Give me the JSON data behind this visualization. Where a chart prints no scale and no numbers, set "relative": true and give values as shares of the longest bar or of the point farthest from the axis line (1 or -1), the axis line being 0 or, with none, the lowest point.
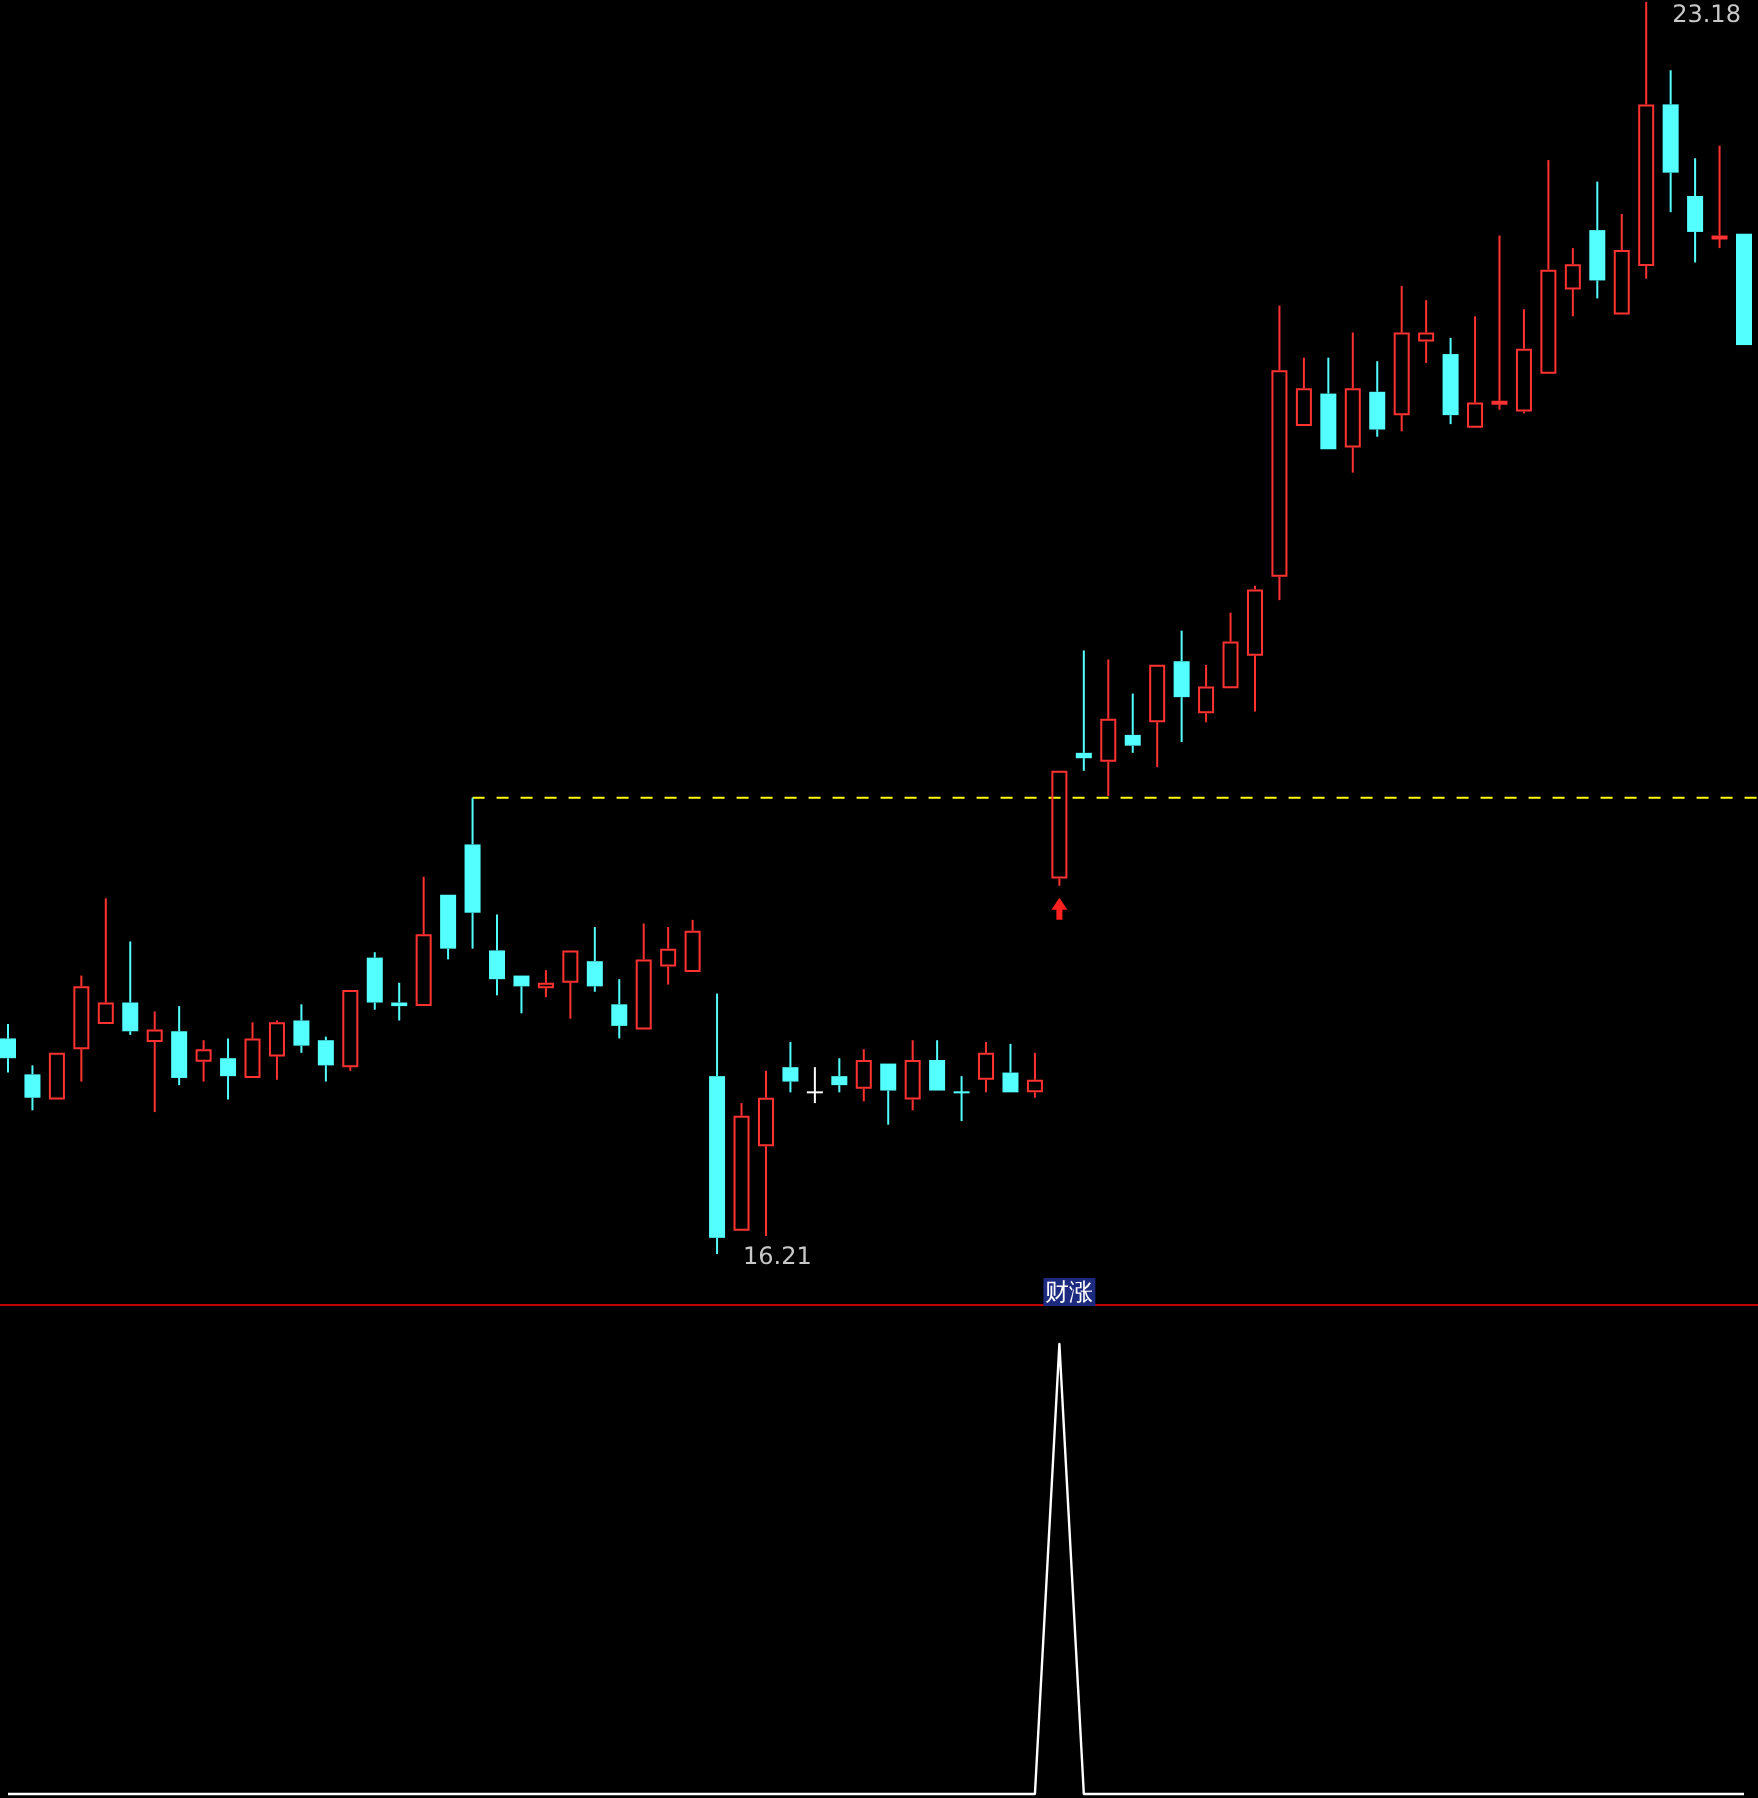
{
  "chart_data": [
    {
      "type": "candlestick",
      "categories": [
        null,
        null,
        null,
        null,
        null,
        null,
        null,
        null,
        null,
        null,
        null,
        null,
        null,
        null,
        null,
        null,
        null,
        null,
        null,
        null,
        null,
        null,
        null,
        null,
        null,
        null,
        null,
        null,
        null,
        null,
        null,
        null,
        null,
        null,
        null,
        null,
        null,
        null,
        null,
        null,
        null,
        null,
        null,
        null,
        null,
        null,
        null,
        null,
        null,
        null,
        null,
        null,
        null,
        null,
        null,
        null,
        null,
        null,
        null,
        null,
        null,
        null,
        null,
        null,
        null,
        null,
        null,
        null,
        null,
        null,
        null,
        null
      ],
      "ohlc": [
        [
          17.41,
          17.49,
          17.22,
          17.3
        ],
        [
          17.21,
          17.26,
          17.01,
          17.08
        ],
        [
          17.07,
          17.33,
          17.07,
          17.33
        ],
        [
          17.35,
          17.76,
          17.17,
          17.7
        ],
        [
          17.49,
          18.19,
          17.49,
          17.61
        ],
        [
          17.61,
          17.95,
          17.43,
          17.45
        ],
        [
          17.39,
          17.56,
          17.0,
          17.46
        ],
        [
          17.45,
          17.59,
          17.15,
          17.19
        ],
        [
          17.28,
          17.4,
          17.17,
          17.35
        ],
        [
          17.3,
          17.41,
          17.07,
          17.2
        ],
        [
          17.19,
          17.5,
          17.19,
          17.41
        ],
        [
          17.31,
          17.51,
          17.18,
          17.5
        ],
        [
          17.51,
          17.6,
          17.33,
          17.37
        ],
        [
          17.4,
          17.42,
          17.17,
          17.26
        ],
        [
          17.25,
          17.68,
          17.23,
          17.68
        ],
        [
          17.86,
          17.89,
          17.57,
          17.61
        ],
        [
          17.61,
          17.72,
          17.51,
          17.59
        ],
        [
          17.59,
          18.31,
          17.59,
          17.99
        ],
        [
          18.21,
          18.21,
          17.85,
          17.91
        ],
        [
          18.49,
          18.75,
          17.91,
          18.11
        ],
        [
          17.9,
          18.1,
          17.65,
          17.74
        ],
        [
          17.76,
          17.76,
          17.55,
          17.7
        ],
        [
          17.69,
          17.79,
          17.64,
          17.72
        ],
        [
          17.72,
          17.9,
          17.52,
          17.9
        ],
        [
          17.84,
          18.03,
          17.67,
          17.7
        ],
        [
          17.6,
          17.74,
          17.41,
          17.48
        ],
        [
          17.46,
          18.05,
          17.46,
          17.85
        ],
        [
          17.81,
          18.03,
          17.71,
          17.91
        ],
        [
          17.78,
          18.07,
          17.78,
          18.01
        ],
        [
          17.2,
          17.66,
          16.21,
          16.3
        ],
        [
          16.34,
          17.05,
          16.34,
          16.98
        ],
        [
          16.81,
          17.23,
          16.31,
          17.08
        ],
        [
          17.25,
          17.39,
          17.11,
          17.17
        ],
        [
          17.11,
          17.25,
          17.05,
          17.11
        ],
        [
          17.2,
          17.3,
          17.11,
          17.15
        ],
        [
          17.13,
          17.35,
          17.06,
          17.29
        ],
        [
          17.27,
          17.27,
          16.93,
          17.12
        ],
        [
          17.07,
          17.4,
          17.01,
          17.29
        ],
        [
          17.29,
          17.4,
          17.12,
          17.12
        ],
        [
          17.11,
          17.2,
          16.95,
          17.11
        ],
        [
          17.18,
          17.39,
          17.11,
          17.33
        ],
        [
          17.22,
          17.38,
          17.11,
          17.11
        ],
        [
          17.11,
          17.33,
          17.08,
          17.18
        ],
        [
          18.3,
          18.9,
          18.26,
          18.9
        ],
        [
          19.0,
          19.57,
          18.9,
          18.97
        ],
        [
          18.95,
          19.52,
          18.76,
          19.19
        ],
        [
          19.1,
          19.33,
          19.0,
          19.04
        ],
        [
          19.17,
          19.49,
          18.92,
          19.49
        ],
        [
          19.51,
          19.68,
          19.06,
          19.31
        ],
        [
          19.22,
          19.49,
          19.17,
          19.37
        ],
        [
          19.36,
          19.78,
          19.36,
          19.62
        ],
        [
          19.54,
          19.93,
          19.23,
          19.91
        ],
        [
          19.98,
          21.49,
          19.85,
          21.13
        ],
        [
          20.82,
          21.2,
          20.82,
          21.03
        ],
        [
          21.0,
          21.2,
          20.69,
          20.69
        ],
        [
          20.7,
          21.34,
          20.56,
          21.03
        ],
        [
          21.01,
          21.18,
          20.76,
          20.8
        ],
        [
          20.88,
          21.6,
          20.79,
          21.34
        ],
        [
          21.29,
          21.52,
          21.17,
          21.34
        ],
        [
          21.22,
          21.31,
          20.83,
          20.88
        ],
        [
          20.81,
          21.43,
          20.81,
          20.95
        ],
        [
          20.94,
          21.88,
          20.91,
          20.96
        ],
        [
          20.9,
          21.47,
          20.89,
          21.25
        ],
        [
          21.11,
          22.3,
          21.11,
          21.69
        ],
        [
          21.58,
          21.81,
          21.43,
          21.72
        ],
        [
          21.91,
          22.18,
          21.53,
          21.63
        ],
        [
          21.44,
          22.0,
          21.44,
          21.8
        ],
        [
          21.71,
          23.18,
          21.64,
          22.61
        ],
        [
          22.61,
          22.8,
          22.01,
          22.23
        ],
        [
          22.1,
          22.31,
          21.73,
          21.9
        ],
        [
          21.86,
          22.38,
          21.81,
          21.88
        ],
        [
          21.89,
          21.89,
          21.27,
          21.27
        ]
      ],
      "colors": [
        "#54ffff",
        "#54ffff",
        "#ff3232",
        "#ff3232",
        "#ff3232",
        "#54ffff",
        "#ff3232",
        "#54ffff",
        "#ff3232",
        "#54ffff",
        "#ff3232",
        "#ff3232",
        "#54ffff",
        "#54ffff",
        "#ff3232",
        "#54ffff",
        "#54ffff",
        "#ff3232",
        "#54ffff",
        "#54ffff",
        "#54ffff",
        "#54ffff",
        "#ff3232",
        "#ff3232",
        "#54ffff",
        "#54ffff",
        "#ff3232",
        "#ff3232",
        "#ff3232",
        "#54ffff",
        "#ff3232",
        "#ff3232",
        "#54ffff",
        "#ffffff",
        "#54ffff",
        "#ff3232",
        "#54ffff",
        "#ff3232",
        "#54ffff",
        "#54ffff",
        "#ff3232",
        "#54ffff",
        "#ff3232",
        "#ff3232",
        "#54ffff",
        "#ff3232",
        "#54ffff",
        "#ff3232",
        "#54ffff",
        "#ff3232",
        "#ff3232",
        "#ff3232",
        "#ff3232",
        "#ff3232",
        "#54ffff",
        "#ff3232",
        "#54ffff",
        "#ff3232",
        "#ff3232",
        "#54ffff",
        "#ff3232",
        "#ff3232",
        "#ff3232",
        "#ff3232",
        "#ff3232",
        "#54ffff",
        "#ff3232",
        "#ff3232",
        "#54ffff",
        "#54ffff",
        "#ff3232",
        "#54ffff"
      ],
      "annotations": [
        "23.18",
        "16.21"
      ],
      "ref_lines": [
        {
          "axis": "y",
          "value": 18.75,
          "color": "#ffff00",
          "line_style": "dashed"
        }
      ]
    },
    {
      "type": "line",
      "relative": true,
      "categories": [
        null,
        null,
        null,
        null,
        null,
        null,
        null,
        null,
        null,
        null,
        null,
        null,
        null,
        null,
        null,
        null,
        null,
        null,
        null,
        null,
        null,
        null,
        null,
        null,
        null,
        null,
        null,
        null,
        null,
        null,
        null,
        null,
        null,
        null,
        null,
        null,
        null,
        null,
        null,
        null,
        null,
        null,
        null,
        null,
        null,
        null,
        null,
        null,
        null,
        null,
        null,
        null,
        null,
        null,
        null,
        null,
        null,
        null,
        null,
        null,
        null,
        null,
        null,
        null,
        null,
        null,
        null,
        null,
        null,
        null,
        null,
        null
      ],
      "values": [
        0,
        0,
        0,
        0,
        0,
        0,
        0,
        0,
        0,
        0,
        0,
        0,
        0,
        0,
        0,
        0,
        0,
        0,
        0,
        0,
        0,
        0,
        0,
        0,
        0,
        0,
        0,
        0,
        0,
        0,
        0,
        0,
        0,
        0,
        0,
        0,
        0,
        0,
        0,
        0,
        0,
        0,
        0,
        1,
        0,
        0,
        0,
        0,
        0,
        0,
        0,
        0,
        0,
        0,
        0,
        0,
        0,
        0,
        0,
        0,
        0,
        0,
        0,
        0,
        0,
        0,
        0,
        0,
        0,
        0,
        0,
        0
      ],
      "color": "#ffffff",
      "annotations": [
        "财涨"
      ]
    }
  ]
}
